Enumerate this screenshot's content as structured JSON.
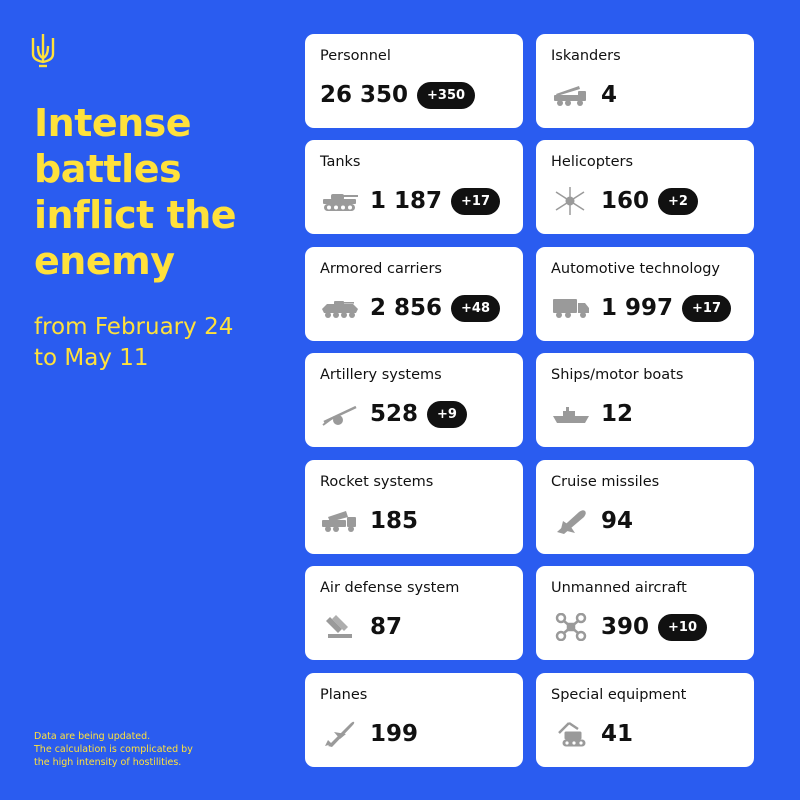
{
  "headline": [
    "Intense",
    "battles",
    "inflict the",
    "enemy"
  ],
  "period": [
    "from February 24",
    "to May 11"
  ],
  "note": [
    "Data are being updated.",
    "The calculation is complicated by",
    "the high intensity of hostilities."
  ],
  "colors": {
    "background": "#2a5cf0",
    "accent": "#ffe13b",
    "badge": "#111111",
    "card": "#ffffff",
    "icon": "#9a9a9a"
  },
  "cards": [
    {
      "label": "Personnel",
      "value": "26 350",
      "delta": "+350",
      "icon": "none"
    },
    {
      "label": "Iskanders",
      "value": "4",
      "delta": "",
      "icon": "missile-launcher-icon"
    },
    {
      "label": "Tanks",
      "value": "1 187",
      "delta": "+17",
      "icon": "tank-icon"
    },
    {
      "label": "Helicopters",
      "value": "160",
      "delta": "+2",
      "icon": "helicopter-icon"
    },
    {
      "label": "Armored carriers",
      "value": "2 856",
      "delta": "+48",
      "icon": "armored-carrier-icon"
    },
    {
      "label": "Automotive technology",
      "value": "1 997",
      "delta": "+17",
      "icon": "truck-icon"
    },
    {
      "label": "Artillery systems",
      "value": "528",
      "delta": "+9",
      "icon": "artillery-icon"
    },
    {
      "label": "Ships/motor boats",
      "value": "12",
      "delta": "",
      "icon": "ship-icon"
    },
    {
      "label": "Rocket systems",
      "value": "185",
      "delta": "",
      "icon": "rocket-launcher-icon"
    },
    {
      "label": "Cruise missiles",
      "value": "94",
      "delta": "",
      "icon": "cruise-missile-icon"
    },
    {
      "label": "Air defense system",
      "value": "87",
      "delta": "",
      "icon": "air-defense-icon"
    },
    {
      "label": "Unmanned aircraft",
      "value": "390",
      "delta": "+10",
      "icon": "drone-icon"
    },
    {
      "label": "Planes",
      "value": "199",
      "delta": "",
      "icon": "plane-icon"
    },
    {
      "label": "Special equipment",
      "value": "41",
      "delta": "",
      "icon": "excavator-icon"
    }
  ]
}
